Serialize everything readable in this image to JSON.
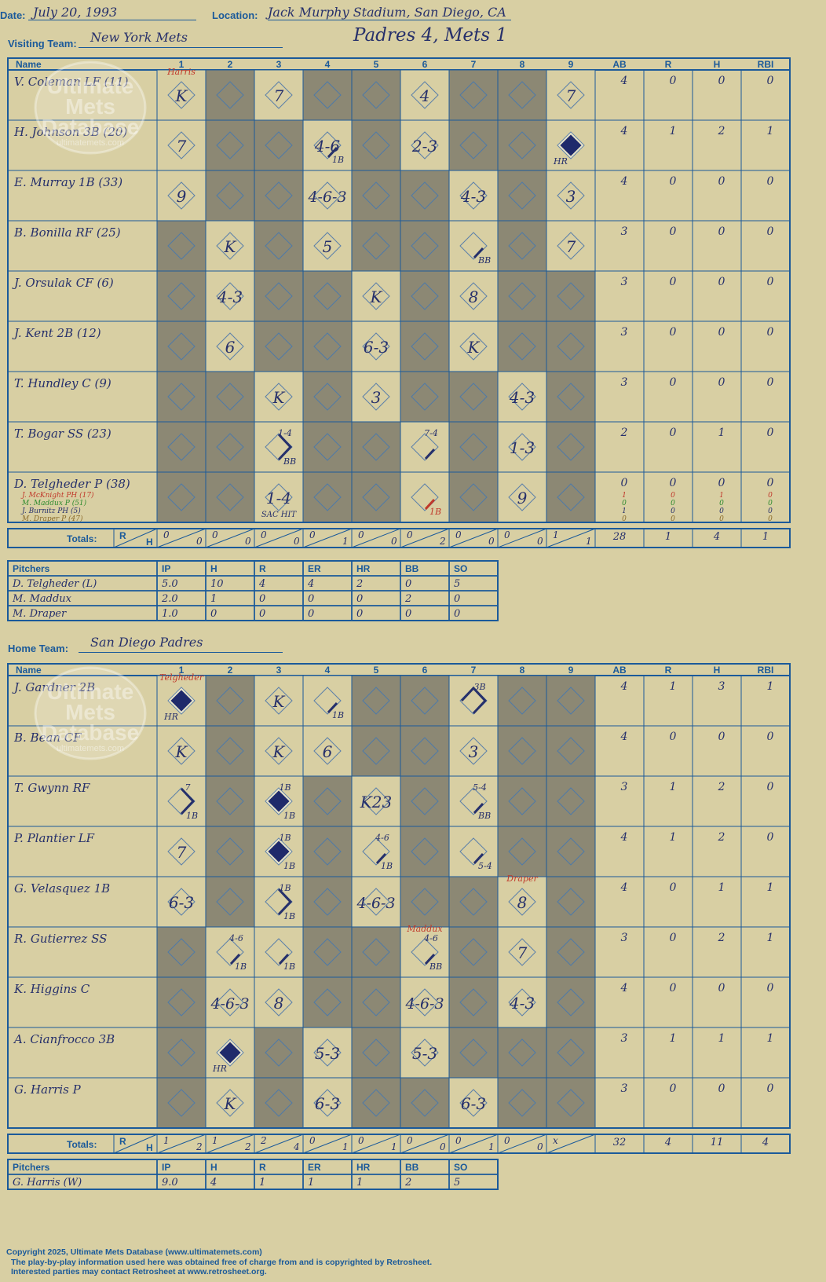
{
  "header": {
    "date_label": "Date:",
    "date": "July 20, 1993",
    "location_label": "Location:",
    "location": "Jack Murphy Stadium, San Diego, CA",
    "score_title": "Padres 4, Mets 1",
    "visiting_label": "Visiting Team:",
    "visiting_team": "New York Mets",
    "home_label": "Home Team:",
    "home_team": "San Diego Padres"
  },
  "watermark": {
    "line1": "Ultimate",
    "line2": "Mets",
    "line3": "Database",
    "url": "ultimatemets.com"
  },
  "grid_headers": {
    "name": "Name",
    "innings": [
      "1",
      "2",
      "3",
      "4",
      "5",
      "6",
      "7",
      "8",
      "9"
    ],
    "stats": [
      "AB",
      "R",
      "H",
      "RBI"
    ],
    "totals": "Totals:",
    "r": "R",
    "h": "H"
  },
  "visitors": {
    "batters": [
      {
        "name": "V. Coleman LF (11)",
        "stats": [
          "4",
          "0",
          "0",
          "0"
        ]
      },
      {
        "name": "H. Johnson 3B (20)",
        "stats": [
          "4",
          "1",
          "2",
          "1"
        ]
      },
      {
        "name": "E. Murray 1B (33)",
        "stats": [
          "4",
          "0",
          "0",
          "0"
        ]
      },
      {
        "name": "B. Bonilla RF (25)",
        "stats": [
          "3",
          "0",
          "0",
          "0"
        ]
      },
      {
        "name": "J. Orsulak CF (6)",
        "stats": [
          "3",
          "0",
          "0",
          "0"
        ]
      },
      {
        "name": "J. Kent 2B (12)",
        "stats": [
          "3",
          "0",
          "0",
          "0"
        ]
      },
      {
        "name": "T. Hundley C (9)",
        "stats": [
          "3",
          "0",
          "0",
          "0"
        ]
      },
      {
        "name": "T. Bogar SS (23)",
        "stats": [
          "2",
          "0",
          "1",
          "0"
        ]
      },
      {
        "name": "D. Telgheder P (38)",
        "stats": [
          "0",
          "0",
          "0",
          "0"
        ]
      }
    ],
    "subs": [
      {
        "name": "J. McKnight PH (17)",
        "color": "#c0392b",
        "stats": [
          "1",
          "0",
          "1",
          "0"
        ]
      },
      {
        "name": "M. Maddux P (51)",
        "color": "#2e8b2e",
        "stats": [
          "0",
          "0",
          "0",
          "0"
        ]
      },
      {
        "name": "J. Burnitz PH (5)",
        "color": "#26306b",
        "stats": [
          "1",
          "0",
          "0",
          "0"
        ]
      },
      {
        "name": "M. Draper P (47)",
        "color": "#8b6b2a",
        "stats": [
          "0",
          "0",
          "0",
          "0"
        ]
      }
    ],
    "pitcher_notes": [
      {
        "inning": 1,
        "row": 0,
        "text": "Harris"
      }
    ],
    "plays": [
      {
        "row": 0,
        "inning": 1,
        "text": "K"
      },
      {
        "row": 0,
        "inning": 3,
        "text": "7"
      },
      {
        "row": 0,
        "inning": 6,
        "text": "4"
      },
      {
        "row": 0,
        "inning": 9,
        "text": "7"
      },
      {
        "row": 1,
        "inning": 1,
        "text": "7"
      },
      {
        "row": 1,
        "inning": 4,
        "text": "4-6",
        "sub": "1B",
        "path": 1
      },
      {
        "row": 1,
        "inning": 6,
        "text": "2-3"
      },
      {
        "row": 1,
        "inning": 9,
        "text": "",
        "sub": "HR",
        "path": 4
      },
      {
        "row": 2,
        "inning": 1,
        "text": "9"
      },
      {
        "row": 2,
        "inning": 4,
        "text": "4-6-3"
      },
      {
        "row": 2,
        "inning": 7,
        "text": "4-3"
      },
      {
        "row": 2,
        "inning": 9,
        "text": "3"
      },
      {
        "row": 3,
        "inning": 2,
        "text": "K"
      },
      {
        "row": 3,
        "inning": 4,
        "text": "5"
      },
      {
        "row": 3,
        "inning": 7,
        "text": "",
        "sub": "BB",
        "path": 1
      },
      {
        "row": 3,
        "inning": 9,
        "text": "7"
      },
      {
        "row": 4,
        "inning": 2,
        "text": "4-3"
      },
      {
        "row": 4,
        "inning": 5,
        "text": "K"
      },
      {
        "row": 4,
        "inning": 7,
        "text": "8"
      },
      {
        "row": 5,
        "inning": 2,
        "text": "6"
      },
      {
        "row": 5,
        "inning": 5,
        "text": "6-3"
      },
      {
        "row": 5,
        "inning": 7,
        "text": "K"
      },
      {
        "row": 6,
        "inning": 3,
        "text": "K"
      },
      {
        "row": 6,
        "inning": 5,
        "text": "3"
      },
      {
        "row": 6,
        "inning": 8,
        "text": "4-3"
      },
      {
        "row": 7,
        "inning": 3,
        "text": "",
        "sub": "BB",
        "note": "1-4",
        "path": 2
      },
      {
        "row": 7,
        "inning": 6,
        "text": "",
        "note": "7-4",
        "path": 1
      },
      {
        "row": 7,
        "inning": 8,
        "text": "1-3"
      },
      {
        "row": 8,
        "inning": 3,
        "text": "1-4",
        "sub": "SAC HIT"
      },
      {
        "row": 8,
        "inning": 6,
        "text": "",
        "sub": "1B",
        "path": 1,
        "red": true
      },
      {
        "row": 8,
        "inning": 8,
        "text": "9"
      }
    ],
    "active": [
      [
        1,
        3,
        6,
        9
      ],
      [
        1,
        4,
        6,
        9
      ],
      [
        1,
        4,
        7,
        9
      ],
      [
        2,
        4,
        7,
        9
      ],
      [
        2,
        5,
        7
      ],
      [
        2,
        5,
        7
      ],
      [
        3,
        5,
        8
      ],
      [
        3,
        6,
        8
      ],
      [
        3,
        6,
        8
      ]
    ],
    "totals": [
      [
        "0",
        "0"
      ],
      [
        "0",
        "0"
      ],
      [
        "0",
        "0"
      ],
      [
        "0",
        "1"
      ],
      [
        "0",
        "0"
      ],
      [
        "0",
        "2"
      ],
      [
        "0",
        "0"
      ],
      [
        "0",
        "0"
      ],
      [
        "1",
        "1"
      ]
    ],
    "totals_stats": [
      "28",
      "1",
      "4",
      "1"
    ]
  },
  "visitor_pitchers": {
    "headers": [
      "Pitchers",
      "IP",
      "H",
      "R",
      "ER",
      "HR",
      "BB",
      "SO"
    ],
    "rows": [
      [
        "D. Telgheder (L)",
        "5.0",
        "10",
        "4",
        "4",
        "2",
        "0",
        "5"
      ],
      [
        "M. Maddux",
        "2.0",
        "1",
        "0",
        "0",
        "0",
        "2",
        "0"
      ],
      [
        "M. Draper",
        "1.0",
        "0",
        "0",
        "0",
        "0",
        "0",
        "0"
      ]
    ]
  },
  "home": {
    "batters": [
      {
        "name": "J. Gardner 2B",
        "stats": [
          "4",
          "1",
          "3",
          "1"
        ]
      },
      {
        "name": "B. Bean CF",
        "stats": [
          "4",
          "0",
          "0",
          "0"
        ]
      },
      {
        "name": "T. Gwynn RF",
        "stats": [
          "3",
          "1",
          "2",
          "0"
        ]
      },
      {
        "name": "P. Plantier LF",
        "stats": [
          "4",
          "1",
          "2",
          "0"
        ]
      },
      {
        "name": "G. Velasquez 1B",
        "stats": [
          "4",
          "0",
          "1",
          "1"
        ]
      },
      {
        "name": "R. Gutierrez SS",
        "stats": [
          "3",
          "0",
          "2",
          "1"
        ]
      },
      {
        "name": "K. Higgins C",
        "stats": [
          "4",
          "0",
          "0",
          "0"
        ]
      },
      {
        "name": "A. Cianfrocco 3B",
        "stats": [
          "3",
          "1",
          "1",
          "1"
        ]
      },
      {
        "name": "G. Harris P",
        "stats": [
          "3",
          "0",
          "0",
          "0"
        ]
      }
    ],
    "pitcher_notes": [
      {
        "inning": 1,
        "row": 0,
        "text": "Telgheder"
      },
      {
        "inning": 8,
        "row": 4,
        "text": "Draper"
      },
      {
        "inning": 6,
        "row": 5,
        "text": "Maddux"
      }
    ],
    "plays": [
      {
        "row": 0,
        "inning": 1,
        "text": "",
        "sub": "HR",
        "path": 4
      },
      {
        "row": 0,
        "inning": 3,
        "text": "K"
      },
      {
        "row": 0,
        "inning": 4,
        "text": "",
        "sub": "1B",
        "path": 1
      },
      {
        "row": 0,
        "inning": 7,
        "text": "",
        "note": "3B",
        "path": 3
      },
      {
        "row": 1,
        "inning": 1,
        "text": "K"
      },
      {
        "row": 1,
        "inning": 3,
        "text": "K"
      },
      {
        "row": 1,
        "inning": 4,
        "text": "6"
      },
      {
        "row": 1,
        "inning": 7,
        "text": "3"
      },
      {
        "row": 2,
        "inning": 1,
        "text": "",
        "sub": "1B",
        "note": "7",
        "path": 2
      },
      {
        "row": 2,
        "inning": 3,
        "text": "",
        "sub": "1B",
        "note": "1B",
        "path": 4
      },
      {
        "row": 2,
        "inning": 5,
        "text": "K23"
      },
      {
        "row": 2,
        "inning": 7,
        "text": "",
        "sub": "BB",
        "note": "5-4",
        "path": 1
      },
      {
        "row": 3,
        "inning": 1,
        "text": "7"
      },
      {
        "row": 3,
        "inning": 3,
        "text": "",
        "sub": "1B",
        "note": "1B",
        "path": 4
      },
      {
        "row": 3,
        "inning": 5,
        "text": "",
        "sub": "1B",
        "note": "4-6",
        "path": 1
      },
      {
        "row": 3,
        "inning": 7,
        "text": "",
        "sub": "5-4",
        "path": 1
      },
      {
        "row": 4,
        "inning": 1,
        "text": "6-3"
      },
      {
        "row": 4,
        "inning": 3,
        "text": "",
        "sub": "1B",
        "note": "1B",
        "path": 2
      },
      {
        "row": 4,
        "inning": 5,
        "text": "4-6-3"
      },
      {
        "row": 4,
        "inning": 8,
        "text": "8"
      },
      {
        "row": 5,
        "inning": 2,
        "text": "",
        "sub": "1B",
        "note": "4-6",
        "path": 1
      },
      {
        "row": 5,
        "inning": 3,
        "text": "",
        "sub": "1B",
        "path": 1
      },
      {
        "row": 5,
        "inning": 6,
        "text": "",
        "sub": "BB",
        "note": "4-6",
        "path": 1
      },
      {
        "row": 5,
        "inning": 8,
        "text": "7"
      },
      {
        "row": 6,
        "inning": 2,
        "text": "4-6-3"
      },
      {
        "row": 6,
        "inning": 3,
        "text": "8"
      },
      {
        "row": 6,
        "inning": 6,
        "text": "4-6-3"
      },
      {
        "row": 6,
        "inning": 8,
        "text": "4-3"
      },
      {
        "row": 7,
        "inning": 2,
        "text": "",
        "sub": "HR",
        "path": 4
      },
      {
        "row": 7,
        "inning": 4,
        "text": "5-3"
      },
      {
        "row": 7,
        "inning": 6,
        "text": "5-3"
      },
      {
        "row": 8,
        "inning": 2,
        "text": "K"
      },
      {
        "row": 8,
        "inning": 4,
        "text": "6-3"
      },
      {
        "row": 8,
        "inning": 7,
        "text": "6-3"
      }
    ],
    "active": [
      [
        1,
        3,
        4,
        7
      ],
      [
        1,
        3,
        4,
        7
      ],
      [
        1,
        3,
        5,
        7
      ],
      [
        1,
        3,
        5,
        7
      ],
      [
        1,
        3,
        5,
        8
      ],
      [
        2,
        3,
        6,
        8
      ],
      [
        2,
        3,
        6,
        8
      ],
      [
        2,
        4,
        6
      ],
      [
        2,
        4,
        7
      ]
    ],
    "totals": [
      [
        "1",
        "2"
      ],
      [
        "1",
        "2"
      ],
      [
        "2",
        "4"
      ],
      [
        "0",
        "1"
      ],
      [
        "0",
        "1"
      ],
      [
        "0",
        "0"
      ],
      [
        "0",
        "1"
      ],
      [
        "0",
        "0"
      ],
      [
        "x",
        ""
      ]
    ],
    "totals_stats": [
      "32",
      "4",
      "11",
      "4"
    ]
  },
  "home_pitchers": {
    "headers": [
      "Pitchers",
      "IP",
      "H",
      "R",
      "ER",
      "HR",
      "BB",
      "SO"
    ],
    "rows": [
      [
        "G. Harris (W)",
        "9.0",
        "4",
        "1",
        "1",
        "1",
        "2",
        "5"
      ]
    ]
  },
  "footer": {
    "line1": "Copyright 2025, Ultimate Mets Database (www.ultimatemets.com)",
    "line2": "The play-by-play information used here was obtained free of charge from and is copyrighted by Retrosheet.",
    "line3": "Interested parties may contact Retrosheet at www.retrosheet.org."
  },
  "colors": {
    "grid": "#1b5a9a",
    "shaded": "#8c8874",
    "paper": "#d8cfa3",
    "ink": "#26306b",
    "diamond_fill": "#1f2a6b",
    "note_red": "#c0392b"
  }
}
